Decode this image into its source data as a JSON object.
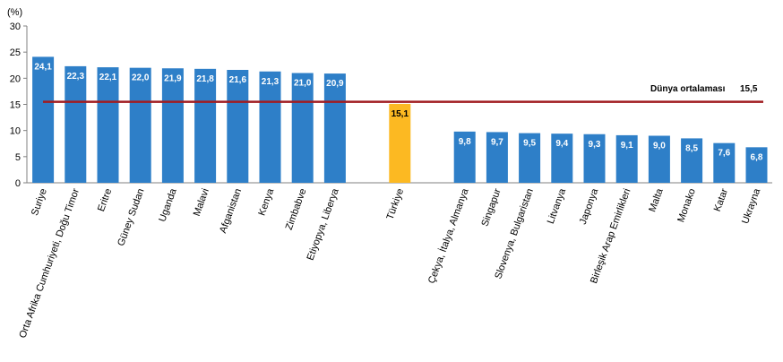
{
  "chart_data": {
    "type": "bar",
    "ylabel": "(%)",
    "ylim": [
      0,
      30
    ],
    "yticks": [
      0,
      5,
      10,
      15,
      20,
      25,
      30
    ],
    "grid": false,
    "categories": [
      "Suriye",
      "Orta Afrika Cumhuriyeti, Doğu Timor",
      "Eritre",
      "Güney Sudan",
      "Uganda",
      "Malavi",
      "Afganistan",
      "Kenya",
      "Zimbabve",
      "Etiyopya, Liberya",
      "Türkiye",
      "Çekya, İtalya, Almanya",
      "Singapur",
      "Slovenya, Bulgaristan",
      "Litvanya",
      "Japonya",
      "Birleşik Arap Emirlikleri",
      "Malta",
      "Monako",
      "Katar",
      "Ukrayna"
    ],
    "values": [
      24.1,
      22.3,
      22.1,
      22.0,
      21.9,
      21.8,
      21.6,
      21.3,
      21.0,
      20.9,
      15.1,
      9.8,
      9.7,
      9.5,
      9.4,
      9.3,
      9.1,
      9.0,
      8.5,
      7.6,
      6.8
    ],
    "data_labels": [
      "24,1",
      "22,3",
      "22,1",
      "22,0",
      "21,9",
      "21,8",
      "21,6",
      "21,3",
      "21,0",
      "20,9",
      "15,1",
      "9,8",
      "9,7",
      "9,5",
      "9,4",
      "9,3",
      "9,1",
      "9,0",
      "8,5",
      "7,6",
      "6,8"
    ],
    "highlight_category": "Türkiye",
    "reference_line": {
      "label": "Dünya ortalaması",
      "value": 15.5,
      "value_label": "15,5"
    },
    "colors": {
      "bar": "#2e7fc8",
      "highlight": "#fcb922",
      "reference_line": "#a01c20",
      "axis": "#808080"
    }
  }
}
